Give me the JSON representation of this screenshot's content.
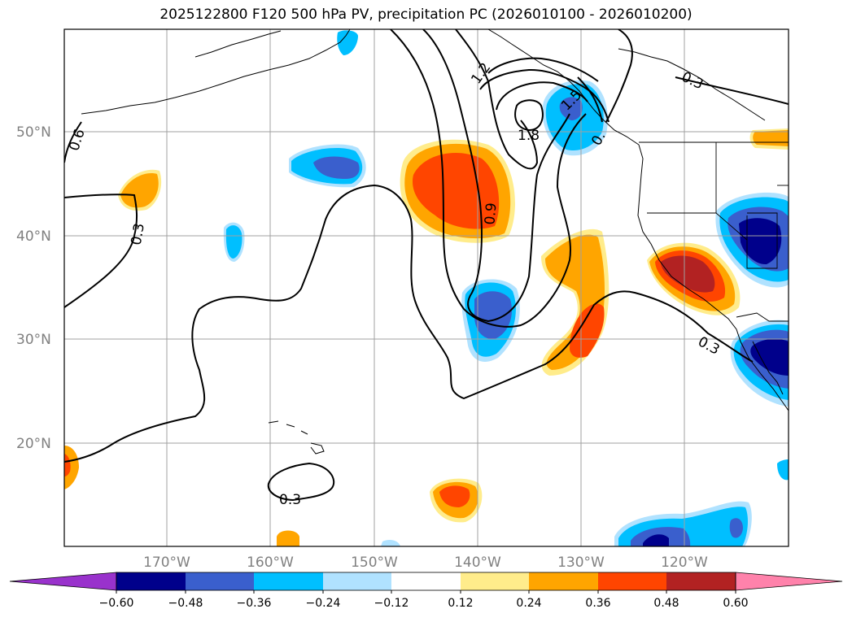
{
  "title": "2025122800 F120 500 hPa PV, precipitation PC (2026010100 - 2026010200)",
  "lat_labels": [
    "50°N",
    "40°N",
    "30°N",
    "20°N"
  ],
  "lon_labels": [
    "170°W",
    "160°W",
    "150°W",
    "140°W",
    "130°W",
    "120°W"
  ],
  "contour_labels": [
    "0.6",
    "0.3",
    "1.2",
    "1.5",
    "1.8",
    "0.9",
    "0.",
    "0.3",
    "0.3",
    "0.3"
  ],
  "colorbar": {
    "colors": [
      "#9932cc",
      "#00008b",
      "#3a5fcd",
      "#00bfff",
      "#b0e2ff",
      "#ffffff",
      "#ffec8b",
      "#ffa500",
      "#ff4500",
      "#b22222",
      "#ff82ab"
    ],
    "ticks": [
      "−0.60",
      "−0.48",
      "−0.36",
      "−0.24",
      "−0.12",
      "0.12",
      "0.24",
      "0.36",
      "0.48",
      "0.60"
    ]
  }
}
